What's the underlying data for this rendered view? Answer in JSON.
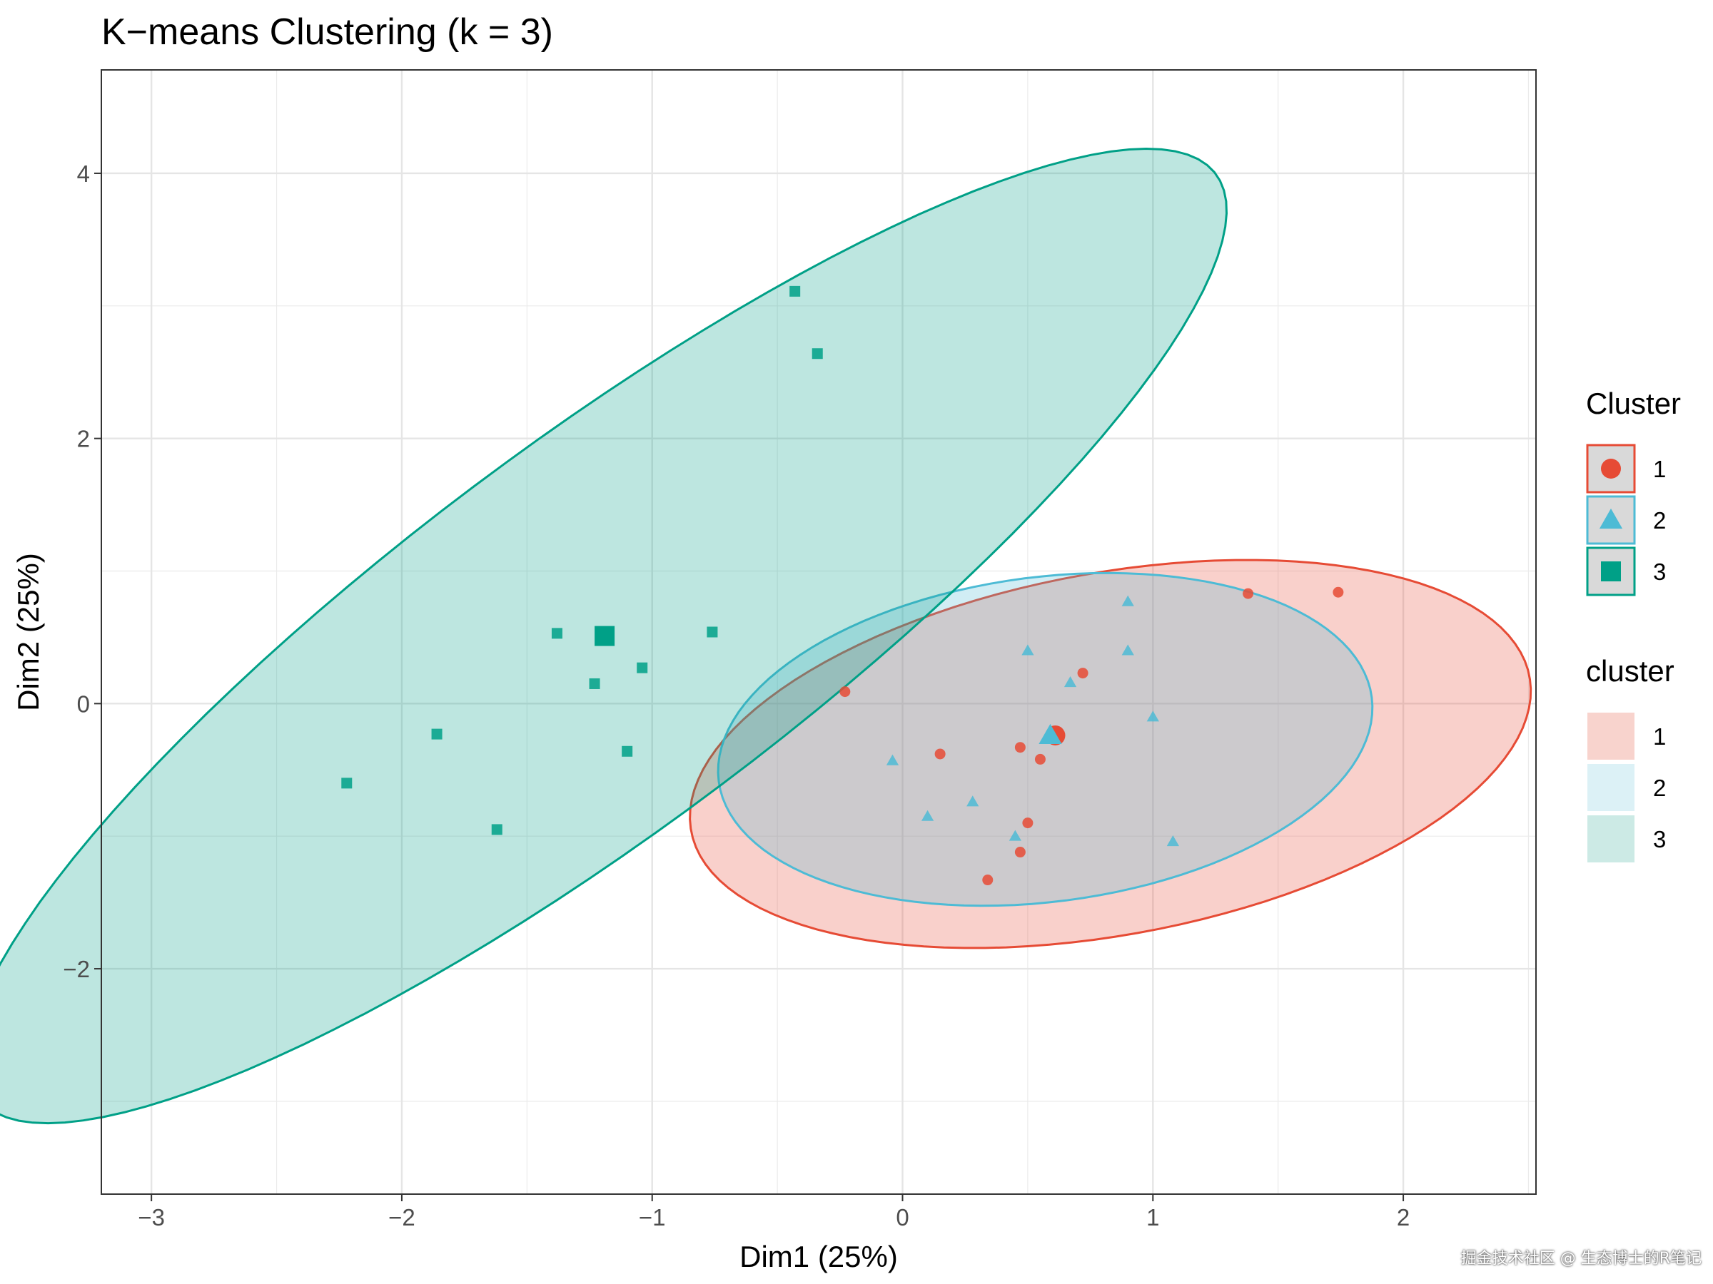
{
  "chart_data": {
    "type": "scatter",
    "title": "K−means Clustering (k = 3)",
    "xlabel": "Dim1 (25%)",
    "ylabel": "Dim2 (25%)",
    "xlim": [
      -3.2,
      2.53
    ],
    "ylim": [
      -3.7,
      4.78
    ],
    "x_ticks": [
      -3,
      -2,
      -1,
      0,
      1,
      2
    ],
    "x_tick_labels": [
      "−3",
      "−2",
      "−1",
      "0",
      "1",
      "2"
    ],
    "y_ticks": [
      -2,
      0,
      2,
      4
    ],
    "y_tick_labels": [
      "−2",
      "0",
      "2",
      "4"
    ],
    "grid": true,
    "legend_position": "right",
    "colors": {
      "1": "#E64B35",
      "2": "#4DBBD5",
      "3": "#00A087"
    },
    "series": [
      {
        "name": "1",
        "shape": "circle",
        "color": "#E64B35",
        "points": [
          [
            -0.23,
            0.09
          ],
          [
            0.15,
            -0.38
          ],
          [
            0.47,
            -0.33
          ],
          [
            0.55,
            -0.42
          ],
          [
            0.72,
            0.23
          ],
          [
            0.5,
            -0.9
          ],
          [
            0.47,
            -1.12
          ],
          [
            0.34,
            -1.33
          ],
          [
            1.38,
            0.83
          ],
          [
            1.74,
            0.84
          ]
        ],
        "centroid": [
          0.61,
          -0.24
        ],
        "ellipse": {
          "center": [
            0.83,
            -0.38
          ],
          "semi_major": 1.83,
          "semi_minor": 1.27,
          "rotation_deg": 33.5,
          "fill": "#F8D3CD"
        }
      },
      {
        "name": "2",
        "shape": "triangle",
        "color": "#4DBBD5",
        "points": [
          [
            -0.04,
            -0.43
          ],
          [
            0.1,
            -0.85
          ],
          [
            0.28,
            -0.74
          ],
          [
            0.5,
            0.4
          ],
          [
            0.67,
            0.16
          ],
          [
            0.9,
            0.77
          ],
          [
            0.9,
            0.4
          ],
          [
            1.0,
            -0.1
          ],
          [
            0.45,
            -1.0
          ],
          [
            1.08,
            -1.04
          ]
        ],
        "centroid": [
          0.59,
          -0.24
        ],
        "ellipse": {
          "center": [
            0.57,
            -0.27
          ],
          "semi_major": 1.4,
          "semi_minor": 1.15,
          "rotation_deg": 39,
          "fill": "#DCF1F6"
        }
      },
      {
        "name": "3",
        "shape": "square",
        "color": "#00A087",
        "points": [
          [
            -0.43,
            3.11
          ],
          [
            -0.34,
            2.64
          ],
          [
            -1.38,
            0.53
          ],
          [
            -1.23,
            0.15
          ],
          [
            -1.04,
            0.27
          ],
          [
            -0.76,
            0.54
          ],
          [
            -1.1,
            -0.36
          ],
          [
            -1.86,
            -0.23
          ],
          [
            -2.22,
            -0.6
          ],
          [
            -1.62,
            -0.95
          ]
        ],
        "centroid": [
          -1.19,
          0.51
        ],
        "ellipse": {
          "center": [
            -1.22,
            0.51
          ],
          "semi_major": 4.33,
          "semi_minor": 1.04,
          "rotation_deg": 57,
          "fill": "#CCEAE5"
        }
      }
    ],
    "legends": [
      {
        "title": "Cluster",
        "kind": "shape",
        "entries": [
          "1",
          "2",
          "3"
        ]
      },
      {
        "title": "cluster",
        "kind": "fill",
        "entries": [
          "1",
          "2",
          "3"
        ]
      }
    ]
  },
  "watermark": "掘金技术社区 @ 生态博士的R笔记"
}
